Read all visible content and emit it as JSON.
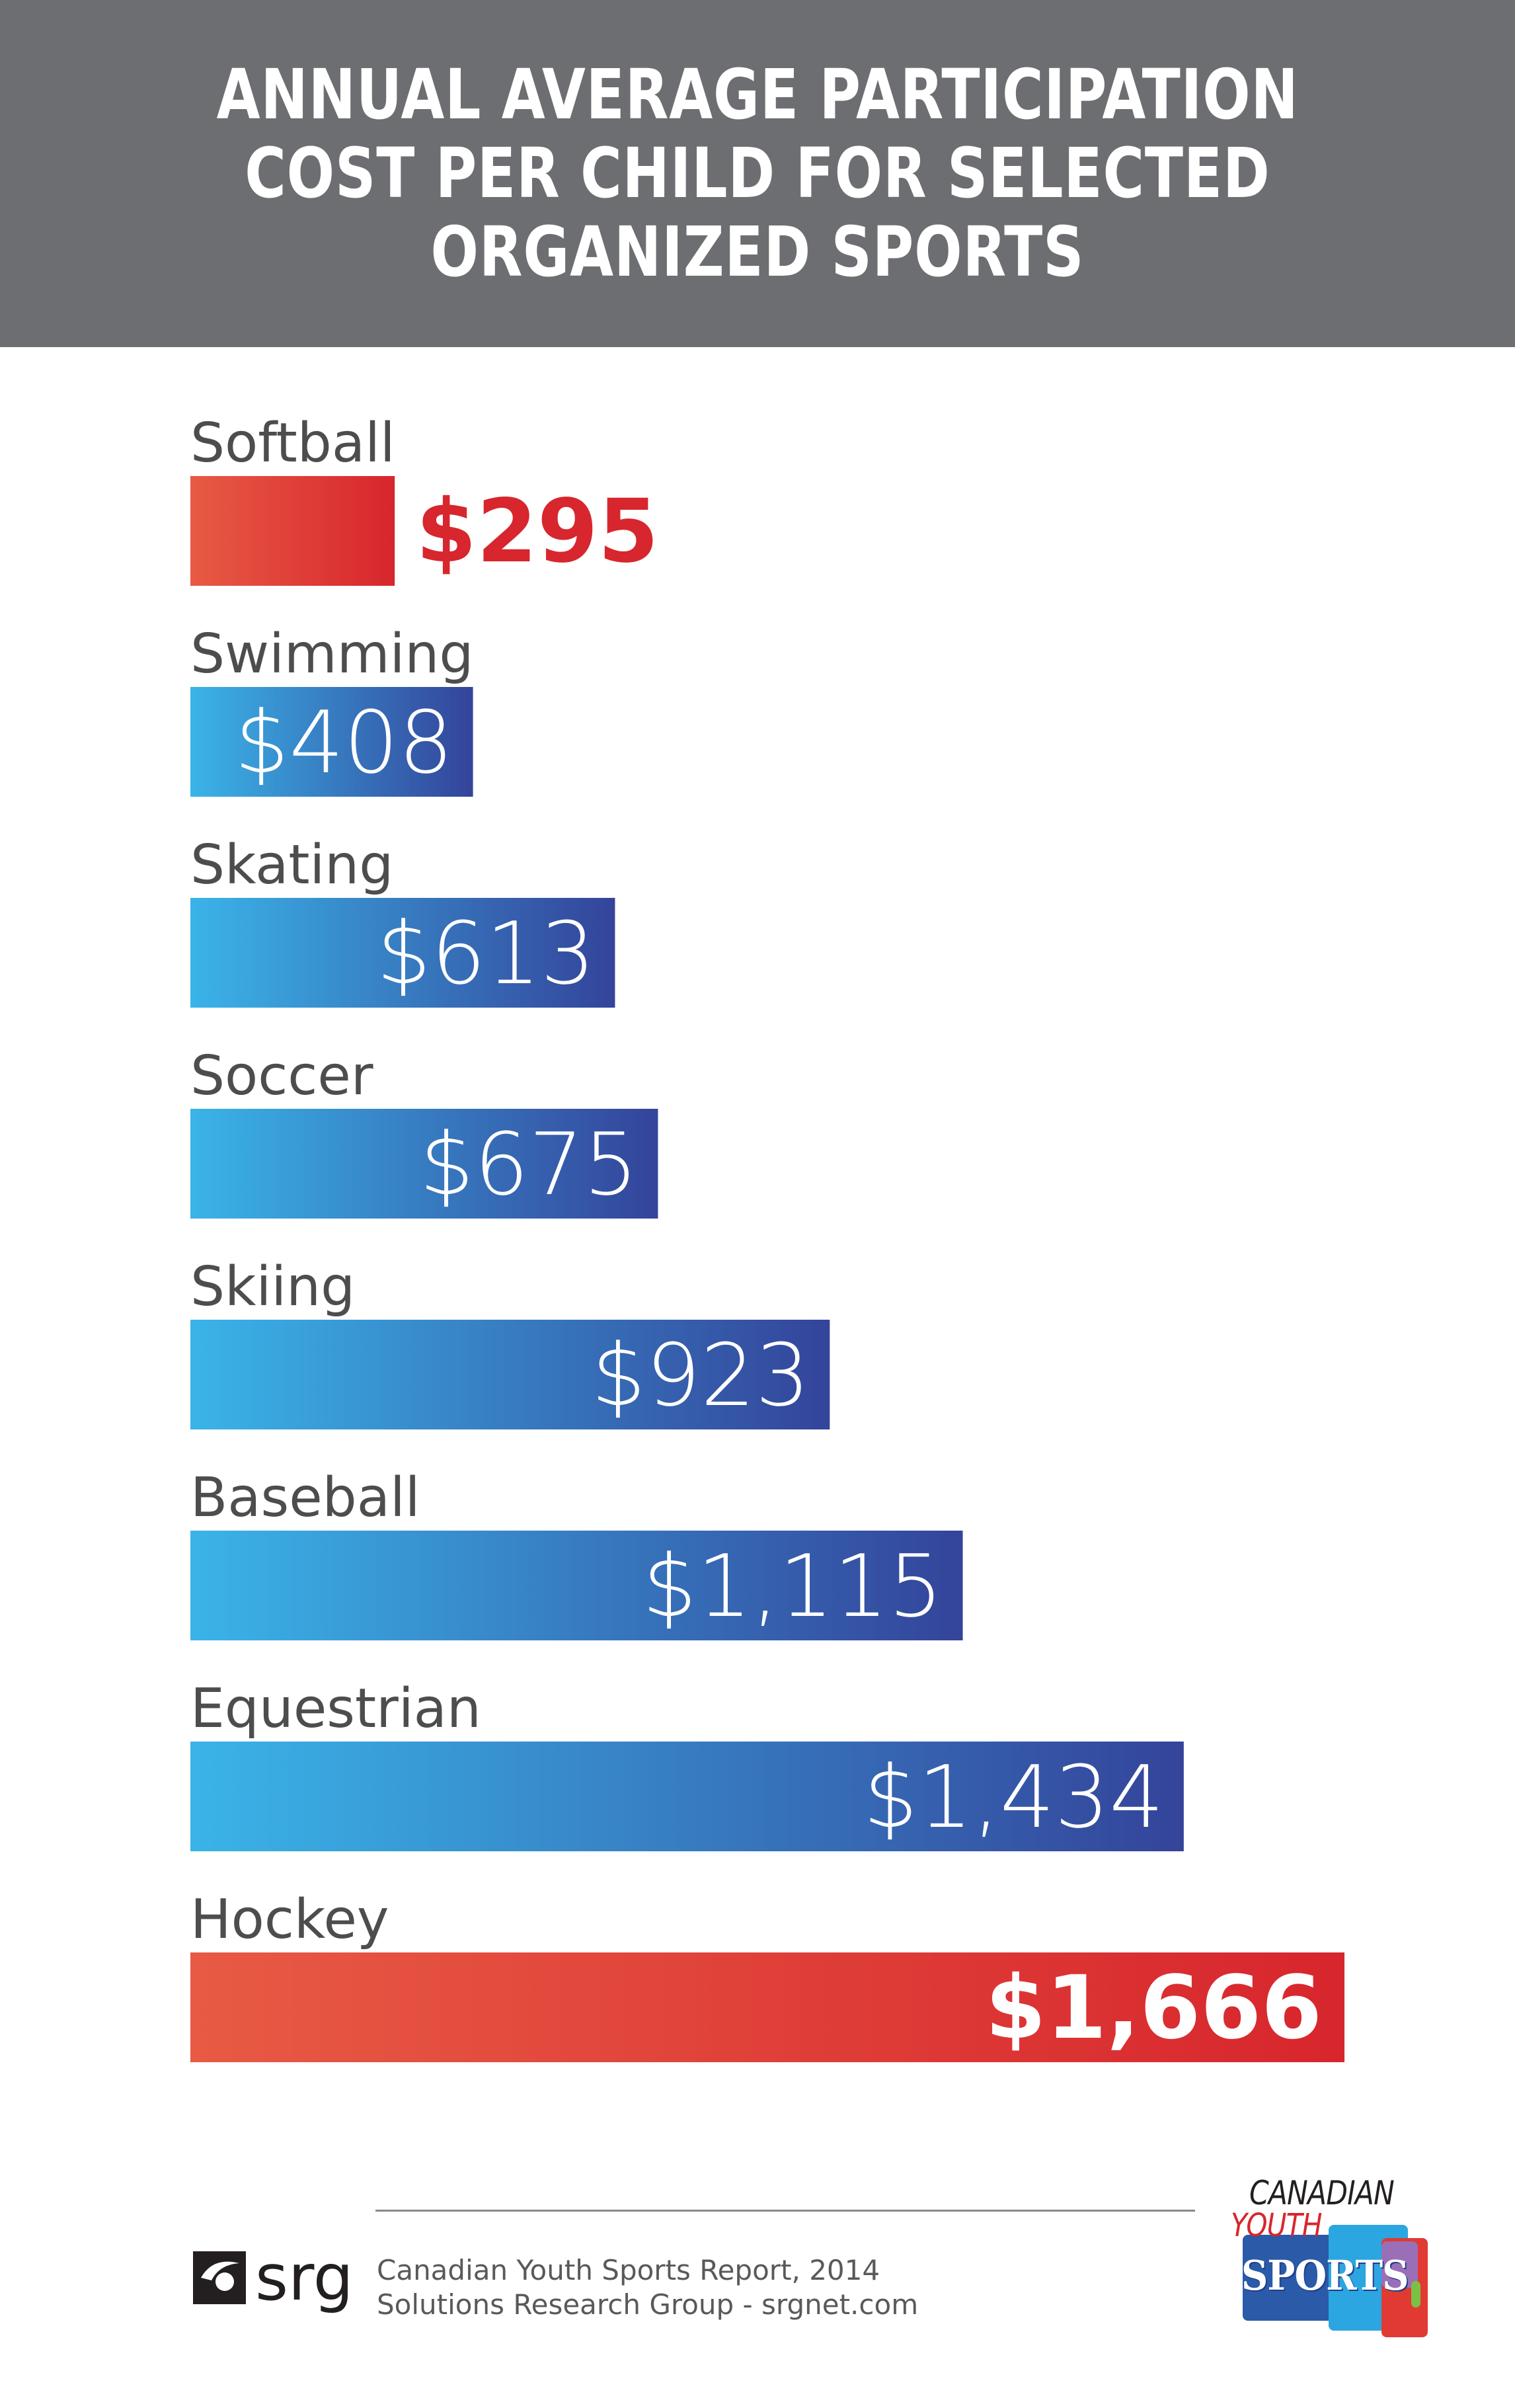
{
  "header": {
    "title_lines": [
      "ANNUAL AVERAGE PARTICIPATION",
      "COST PER CHILD FOR SELECTED",
      "ORGANIZED SPORTS"
    ]
  },
  "chart_data": {
    "type": "bar",
    "orientation": "horizontal",
    "title": "ANNUAL AVERAGE PARTICIPATION COST PER CHILD FOR SELECTED ORGANIZED SPORTS",
    "categories": [
      "Softball",
      "Swimming",
      "Skating",
      "Soccer",
      "Skiing",
      "Baseball",
      "Equestrian",
      "Hockey"
    ],
    "values": [
      295,
      408,
      613,
      675,
      923,
      1115,
      1434,
      1666
    ],
    "value_labels": [
      "$295",
      "$408",
      "$613",
      "$675",
      "$923",
      "$1,115",
      "$1,434",
      "$1,666"
    ],
    "highlighted": [
      "Softball",
      "Hockey"
    ],
    "colors": {
      "default_start": "#3ab4e8",
      "default_end": "#34449a",
      "highlight_start": "#e85a44",
      "highlight_end": "#d7262d",
      "label": "#4d4d4f"
    },
    "grid": false,
    "legend": "none"
  },
  "footer": {
    "srg_logo_text": "srg",
    "source_line1": "Canadian Youth Sports Report, 2014",
    "source_line2": "Solutions Research Group - srgnet.com",
    "cys_logo": {
      "line1": "CANADIAN",
      "line2": "YOUTH",
      "line3": "SPORTS"
    }
  }
}
